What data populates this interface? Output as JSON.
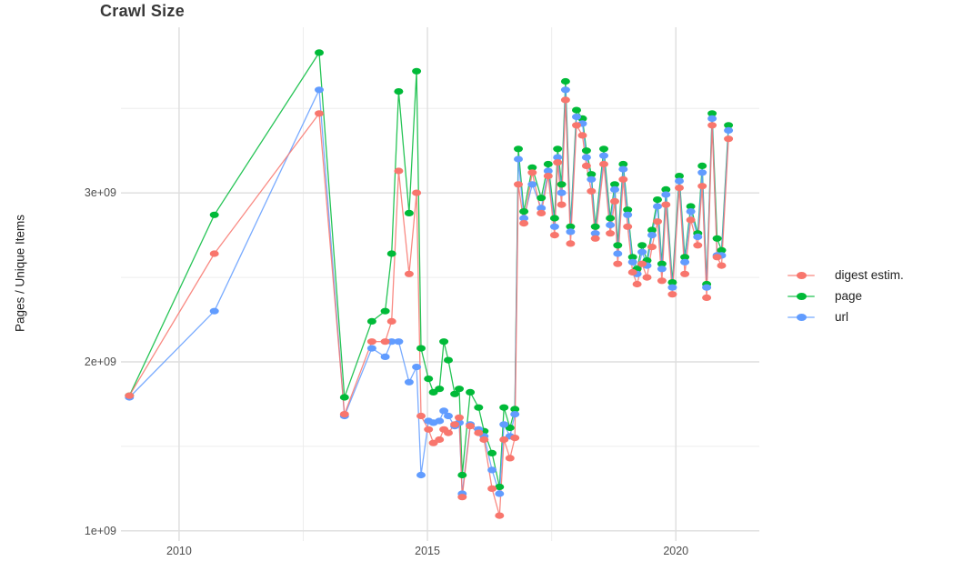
{
  "title": "Crawl Size",
  "y_axis": {
    "label": "Pages / Unique Items",
    "tick_labels": [
      "3e+09",
      "2e+09",
      "1e+09"
    ],
    "tick_values": [
      3,
      2,
      1
    ],
    "minor_values": [
      3.5,
      2.5,
      1.5
    ]
  },
  "x_axis": {
    "tick_labels": [
      "2010",
      "2015",
      "2020"
    ],
    "tick_values": [
      2010,
      2015,
      2020
    ],
    "minor_values": [
      2012.5,
      2017.5
    ]
  },
  "legend": {
    "items": [
      {
        "label": "digest estim.",
        "color": "#F8766D"
      },
      {
        "label": "page",
        "color": "#00BA38"
      },
      {
        "label": "url",
        "color": "#619CFF"
      }
    ]
  },
  "colors": {
    "digest": "#F8766D",
    "page": "#00BA38",
    "url": "#619CFF",
    "grid_major": "#dedede",
    "grid_minor": "#ededed",
    "title_text": "#383838",
    "axis_text": "#4d4d4d"
  },
  "chart_data": {
    "type": "line",
    "title": "Crawl Size",
    "xlabel": "",
    "ylabel": "Pages / Unique Items",
    "y_unit": "1e9 pages / unique items",
    "xlim": [
      2008.83,
      2021.68
    ],
    "ylim": [
      0.94,
      3.98
    ],
    "grid": true,
    "legend_position": "right",
    "x": [
      2009.0,
      2010.71,
      2012.82,
      2013.33,
      2013.88,
      2014.15,
      2014.28,
      2014.42,
      2014.63,
      2014.78,
      2014.87,
      2015.02,
      2015.12,
      2015.24,
      2015.33,
      2015.42,
      2015.55,
      2015.64,
      2015.7,
      2015.86,
      2016.03,
      2016.14,
      2016.3,
      2016.45,
      2016.54,
      2016.66,
      2016.76,
      2016.83,
      2016.94,
      2017.11,
      2017.29,
      2017.43,
      2017.56,
      2017.62,
      2017.7,
      2017.78,
      2017.88,
      2018.0,
      2018.12,
      2018.2,
      2018.3,
      2018.38,
      2018.55,
      2018.68,
      2018.77,
      2018.83,
      2018.94,
      2019.03,
      2019.13,
      2019.22,
      2019.32,
      2019.42,
      2019.52,
      2019.63,
      2019.72,
      2019.8,
      2019.93,
      2020.07,
      2020.18,
      2020.3,
      2020.44,
      2020.53,
      2020.62,
      2020.73,
      2020.83,
      2020.92,
      2021.06
    ],
    "series": [
      {
        "name": "digest estim.",
        "color": "#F8766D",
        "values": [
          1.8,
          2.64,
          3.47,
          1.69,
          2.12,
          2.12,
          2.24,
          3.13,
          2.52,
          3.0,
          1.68,
          1.6,
          1.52,
          1.54,
          1.6,
          1.58,
          1.63,
          1.67,
          1.2,
          1.62,
          1.58,
          1.54,
          1.25,
          1.09,
          1.54,
          1.43,
          1.55,
          3.05,
          2.82,
          3.12,
          2.88,
          3.1,
          2.75,
          3.18,
          2.93,
          3.55,
          2.7,
          3.4,
          3.34,
          3.16,
          3.01,
          2.73,
          3.17,
          2.76,
          2.95,
          2.58,
          3.08,
          2.8,
          2.53,
          2.46,
          2.58,
          2.5,
          2.68,
          2.83,
          2.48,
          2.93,
          2.4,
          3.03,
          2.52,
          2.84,
          2.69,
          3.04,
          2.38,
          3.4,
          2.62,
          2.57,
          3.32
        ]
      },
      {
        "name": "page",
        "color": "#00BA38",
        "values": [
          1.8,
          2.87,
          3.83,
          1.79,
          2.24,
          2.3,
          2.64,
          3.6,
          2.88,
          3.72,
          2.08,
          1.9,
          1.82,
          1.84,
          2.12,
          2.01,
          1.81,
          1.84,
          1.33,
          1.82,
          1.73,
          1.59,
          1.46,
          1.26,
          1.73,
          1.61,
          1.72,
          3.26,
          2.89,
          3.15,
          2.97,
          3.17,
          2.85,
          3.26,
          3.05,
          3.66,
          2.8,
          3.49,
          3.44,
          3.25,
          3.11,
          2.8,
          3.26,
          2.85,
          3.05,
          2.69,
          3.17,
          2.9,
          2.62,
          2.55,
          2.69,
          2.6,
          2.78,
          2.96,
          2.58,
          3.02,
          2.47,
          3.1,
          2.62,
          2.92,
          2.76,
          3.16,
          2.46,
          3.47,
          2.73,
          2.66,
          3.4
        ]
      },
      {
        "name": "url",
        "color": "#619CFF",
        "values": [
          1.79,
          2.3,
          3.61,
          1.68,
          2.08,
          2.03,
          2.12,
          2.12,
          1.88,
          1.97,
          1.33,
          1.65,
          1.64,
          1.65,
          1.71,
          1.68,
          1.62,
          1.64,
          1.22,
          1.63,
          1.6,
          1.56,
          1.36,
          1.22,
          1.63,
          1.56,
          1.69,
          3.2,
          2.85,
          3.05,
          2.91,
          3.13,
          2.8,
          3.21,
          3.0,
          3.61,
          2.77,
          3.45,
          3.41,
          3.21,
          3.08,
          2.76,
          3.22,
          2.81,
          3.02,
          2.64,
          3.14,
          2.87,
          2.59,
          2.52,
          2.65,
          2.57,
          2.75,
          2.92,
          2.55,
          2.99,
          2.44,
          3.07,
          2.59,
          2.89,
          2.74,
          3.12,
          2.44,
          3.44,
          2.63,
          2.63,
          3.37
        ]
      }
    ]
  }
}
